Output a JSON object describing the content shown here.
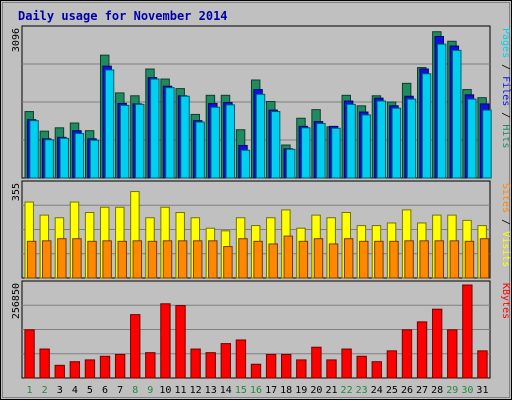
{
  "chart_data": {
    "type": "bar",
    "title": "Daily usage for November 2014",
    "categories": [
      "1",
      "2",
      "3",
      "4",
      "5",
      "6",
      "7",
      "8",
      "9",
      "10",
      "11",
      "12",
      "13",
      "14",
      "15",
      "16",
      "17",
      "18",
      "19",
      "20",
      "21",
      "22",
      "23",
      "24",
      "25",
      "26",
      "27",
      "28",
      "29",
      "30",
      "31"
    ],
    "weekend_days": [
      "1",
      "2",
      "8",
      "9",
      "15",
      "16",
      "22",
      "23",
      "29",
      "30"
    ],
    "colors": {
      "title": "#0000aa",
      "pages": "#00d0f0",
      "files": "#1010e0",
      "hits": "#208a60",
      "sites": "#ff8800",
      "visits": "#ffff00",
      "kbytes": "#ff0000",
      "weekend_label": "#208a40",
      "weekday_label": "#000000",
      "panel_bg": "#c0c0c0"
    },
    "panels": [
      {
        "id": "hits",
        "ymax_label": "3096",
        "legend": [
          {
            "text": "Pages",
            "color": "#00d0f0"
          },
          {
            "text": " / ",
            "color": "#000000"
          },
          {
            "text": "Files",
            "color": "#1010e0"
          },
          {
            "text": " / ",
            "color": "#000000"
          },
          {
            "text": "Hits",
            "color": "#208a60"
          }
        ],
        "ymax": 3096,
        "series": [
          {
            "name": "Hits",
            "values": [
              1390,
              980,
              1050,
              1150,
              990,
              2570,
              1780,
              1720,
              2280,
              2070,
              1870,
              1330,
              1730,
              1730,
              1010,
              2050,
              1600,
              690,
              1250,
              1430,
              1070,
              1730,
              1510,
              1720,
              1590,
              1980,
              2310,
              3060,
              2860,
              1850,
              1680
            ]
          },
          {
            "name": "Files",
            "values": [
              1220,
              820,
              850,
              990,
              820,
              2340,
              1560,
              1550,
              2100,
              1920,
              1720,
              1200,
              1560,
              1580,
              680,
              1850,
              1420,
              610,
              1080,
              1180,
              1080,
              1610,
              1380,
              1670,
              1510,
              1710,
              2280,
              2960,
              2760,
              1740,
              1550
            ]
          },
          {
            "name": "Pages",
            "values": [
              1200,
              800,
              830,
              930,
              790,
              2260,
              1520,
              1540,
              2070,
              1890,
              1710,
              1170,
              1480,
              1530,
              580,
              1750,
              1390,
              600,
              1050,
              1140,
              1040,
              1540,
              1320,
              1610,
              1460,
              1650,
              2180,
              2800,
              2670,
              1650,
              1420
            ]
          }
        ]
      },
      {
        "id": "visits",
        "ymax_label": "355",
        "legend": [
          {
            "text": "Sites",
            "color": "#ff8800"
          },
          {
            "text": " / ",
            "color": "#000000"
          },
          {
            "text": "Visits",
            "color": "#ffff00"
          }
        ],
        "ymax": 355,
        "series": [
          {
            "name": "Visits",
            "values": [
              290,
              240,
              230,
              290,
              250,
              270,
              270,
              330,
              230,
              270,
              250,
              230,
              190,
              180,
              230,
              200,
              230,
              260,
              190,
              240,
              230,
              250,
              200,
              200,
              210,
              260,
              210,
              240,
              240,
              220,
              200
            ]
          },
          {
            "name": "Sites",
            "values": [
              140,
              142,
              150,
              150,
              140,
              142,
              140,
              142,
              140,
              142,
              142,
              142,
              142,
              120,
              150,
              140,
              130,
              160,
              140,
              150,
              130,
              150,
              140,
              140,
              140,
              142,
              142,
              142,
              142,
              140,
              150
            ]
          }
        ]
      },
      {
        "id": "kbytes",
        "ymax_label": "256850",
        "legend": [
          {
            "text": "KBytes",
            "color": "#ff0000"
          }
        ],
        "ymax": 256850,
        "series": [
          {
            "name": "KBytes",
            "values": [
              133000,
              80000,
              35000,
              45000,
              50000,
              60000,
              65000,
              175000,
              70000,
              205000,
              200000,
              80000,
              70000,
              95000,
              105000,
              38000,
              65000,
              65000,
              50000,
              85000,
              50000,
              80000,
              60000,
              45000,
              75000,
              133000,
              155000,
              190000,
              133000,
              256850,
              75000
            ]
          }
        ]
      }
    ]
  }
}
